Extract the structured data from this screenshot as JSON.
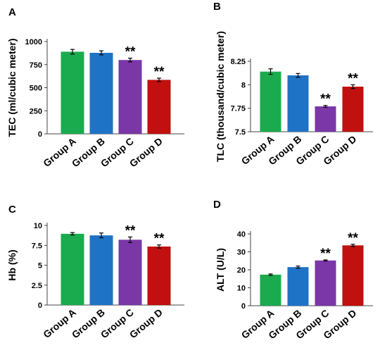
{
  "chart_data": [
    {
      "type": "bar",
      "panel": "A",
      "categories": [
        "Group A",
        "Group B",
        "Group C",
        "Group D"
      ],
      "values": [
        890,
        878,
        800,
        585
      ],
      "errors": [
        25,
        22,
        20,
        18
      ],
      "significance": [
        "",
        "",
        "**",
        "**"
      ],
      "ylabel": "TEC (ml/cubic meter)",
      "ylim": [
        0,
        1000
      ],
      "yticks": [
        0,
        250,
        500,
        750,
        1000
      ],
      "ytick_labels": [
        "0",
        "250",
        "500",
        "750",
        "1000"
      ],
      "colors": [
        "#1aab4f",
        "#1f73c6",
        "#7b36a8",
        "#c0100f"
      ],
      "grid": false
    },
    {
      "type": "bar",
      "panel": "B",
      "categories": [
        "Group A",
        "Group B",
        "Group C",
        "Group D"
      ],
      "values": [
        8.14,
        8.1,
        7.77,
        7.98
      ],
      "errors": [
        0.03,
        0.02,
        0.01,
        0.02
      ],
      "significance": [
        "",
        "",
        "**",
        "**"
      ],
      "ylabel": "TLC (thousand/cubic meter)",
      "ylim": [
        7.5,
        8.25
      ],
      "yticks": [
        7.5,
        7.75,
        8,
        8.25
      ],
      "ytick_labels": [
        "7.5",
        "7.75",
        "8",
        "8.25"
      ],
      "colors": [
        "#1aab4f",
        "#1f73c6",
        "#7b36a8",
        "#c0100f"
      ],
      "grid": false
    },
    {
      "type": "bar",
      "panel": "C",
      "categories": [
        "Group A",
        "Group B",
        "Group C",
        "Group D"
      ],
      "values": [
        8.95,
        8.75,
        8.2,
        7.35
      ],
      "errors": [
        0.15,
        0.3,
        0.35,
        0.2
      ],
      "significance": [
        "",
        "",
        "**",
        "**"
      ],
      "ylabel": "Hb (%)",
      "ylim": [
        0,
        10
      ],
      "yticks": [
        0,
        2.5,
        5,
        7.5,
        10
      ],
      "ytick_labels": [
        "0",
        "2.5",
        "5",
        "7.5",
        "10"
      ],
      "colors": [
        "#1aab4f",
        "#1f73c6",
        "#7b36a8",
        "#c0100f"
      ],
      "grid": false
    },
    {
      "type": "bar",
      "panel": "D",
      "categories": [
        "Group A",
        "Group B",
        "Group C",
        "Group D"
      ],
      "values": [
        17.3,
        21.5,
        25.2,
        33.6
      ],
      "errors": [
        0.4,
        0.6,
        0.3,
        0.6
      ],
      "significance": [
        "",
        "",
        "**",
        "**"
      ],
      "ylabel": "ALT (U/L)",
      "ylim": [
        0,
        40
      ],
      "yticks": [
        0,
        10,
        20,
        30,
        40
      ],
      "ytick_labels": [
        "0",
        "10",
        "20",
        "30",
        "40"
      ],
      "colors": [
        "#1aab4f",
        "#1f73c6",
        "#7b36a8",
        "#c0100f"
      ],
      "grid": false
    }
  ]
}
